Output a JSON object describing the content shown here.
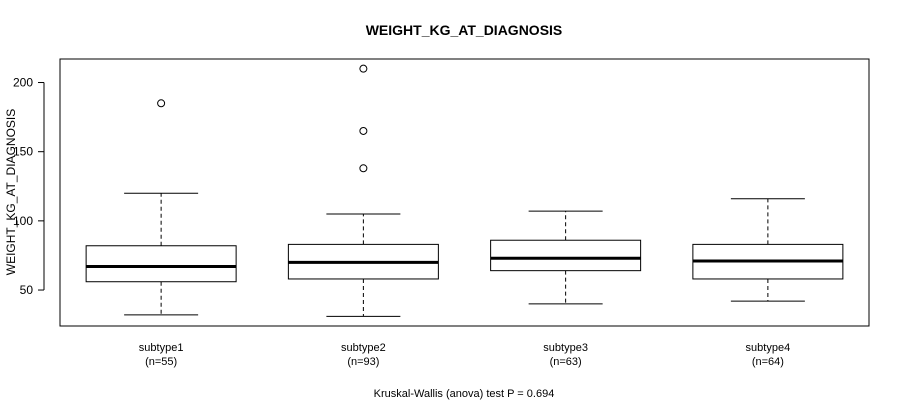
{
  "chart_data": {
    "type": "boxplot",
    "title": "WEIGHT_KG_AT_DIAGNOSIS",
    "ylabel": "WEIGHT_KG_AT_DIAGNOSIS",
    "xlabel": "",
    "ylim": [
      24,
      217
    ],
    "yticks": [
      50,
      100,
      150,
      200
    ],
    "grid": false,
    "footer": "Kruskal-Wallis (anova) test P = 0.694",
    "groups": [
      {
        "name": "subtype1",
        "n_label": "(n=55)",
        "whisker_low": 32,
        "q1": 56,
        "median": 67,
        "q3": 82,
        "whisker_high": 120,
        "outliers": [
          185
        ]
      },
      {
        "name": "subtype2",
        "n_label": "(n=93)",
        "whisker_low": 31,
        "q1": 58,
        "median": 70,
        "q3": 83,
        "whisker_high": 105,
        "outliers": [
          210,
          165,
          138
        ]
      },
      {
        "name": "subtype3",
        "n_label": "(n=63)",
        "whisker_low": 40,
        "q1": 64,
        "median": 73,
        "q3": 86,
        "whisker_high": 107,
        "outliers": []
      },
      {
        "name": "subtype4",
        "n_label": "(n=64)",
        "whisker_low": 42,
        "q1": 58,
        "median": 71,
        "q3": 83,
        "whisker_high": 116,
        "outliers": []
      }
    ]
  }
}
